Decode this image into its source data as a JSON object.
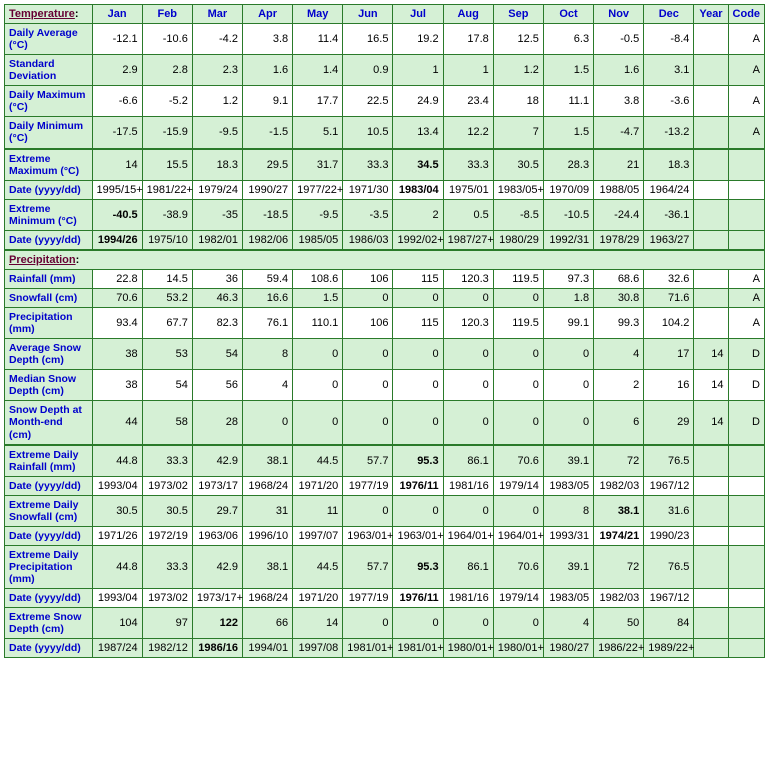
{
  "columns": [
    "Jan",
    "Feb",
    "Mar",
    "Apr",
    "May",
    "Jun",
    "Jul",
    "Aug",
    "Sep",
    "Oct",
    "Nov",
    "Dec",
    "Year",
    "Code"
  ],
  "sections": {
    "temperature": "Temperature",
    "precipitation": "Precipitation"
  },
  "rows": {
    "daily_avg": {
      "label": "Daily Average (°C)",
      "parity": "odd",
      "cells": [
        "-12.1",
        "-10.6",
        "-4.2",
        "3.8",
        "11.4",
        "16.5",
        "19.2",
        "17.8",
        "12.5",
        "6.3",
        "-0.5",
        "-8.4",
        "",
        "A"
      ]
    },
    "std_dev": {
      "label": "Standard Deviation",
      "parity": "even",
      "cells": [
        "2.9",
        "2.8",
        "2.3",
        "1.6",
        "1.4",
        "0.9",
        "1",
        "1",
        "1.2",
        "1.5",
        "1.6",
        "3.1",
        "",
        "A"
      ]
    },
    "daily_max": {
      "label": "Daily Maximum (°C)",
      "parity": "odd",
      "cells": [
        "-6.6",
        "-5.2",
        "1.2",
        "9.1",
        "17.7",
        "22.5",
        "24.9",
        "23.4",
        "18",
        "11.1",
        "3.8",
        "-3.6",
        "",
        "A"
      ]
    },
    "daily_min": {
      "label": "Daily Minimum (°C)",
      "parity": "even",
      "cells": [
        "-17.5",
        "-15.9",
        "-9.5",
        "-1.5",
        "5.1",
        "10.5",
        "13.4",
        "12.2",
        "7",
        "1.5",
        "-4.7",
        "-13.2",
        "",
        "A"
      ]
    },
    "ext_max": {
      "label": "Extreme Maximum (°C)",
      "parity": "even",
      "cells": [
        "14",
        "15.5",
        "18.3",
        "29.5",
        "31.7",
        "33.3",
        "34.5",
        "33.3",
        "30.5",
        "28.3",
        "21",
        "18.3",
        "",
        ""
      ],
      "bold": [
        6
      ]
    },
    "ext_max_date": {
      "label": "Date (yyyy/dd)",
      "parity": "odd",
      "cells": [
        "1995/15+",
        "1981/22+",
        "1979/24",
        "1990/27",
        "1977/22+",
        "1971/30",
        "1983/04",
        "1975/01",
        "1983/05+",
        "1970/09",
        "1988/05",
        "1964/24",
        "",
        ""
      ],
      "bold": [
        6
      ]
    },
    "ext_min": {
      "label": "Extreme Minimum (°C)",
      "parity": "even",
      "cells": [
        "-40.5",
        "-38.9",
        "-35",
        "-18.5",
        "-9.5",
        "-3.5",
        "2",
        "0.5",
        "-8.5",
        "-10.5",
        "-24.4",
        "-36.1",
        "",
        ""
      ],
      "bold": [
        0
      ]
    },
    "ext_min_date": {
      "label": "Date (yyyy/dd)",
      "parity": "even",
      "cells": [
        "1994/26",
        "1975/10",
        "1982/01",
        "1982/06",
        "1985/05",
        "1986/03",
        "1992/02+",
        "1987/27+",
        "1980/29",
        "1992/31",
        "1978/29",
        "1963/27",
        "",
        ""
      ],
      "bold": [
        0
      ]
    },
    "rainfall": {
      "label": "Rainfall (mm)",
      "parity": "odd",
      "cells": [
        "22.8",
        "14.5",
        "36",
        "59.4",
        "108.6",
        "106",
        "115",
        "120.3",
        "119.5",
        "97.3",
        "68.6",
        "32.6",
        "",
        "A"
      ]
    },
    "snowfall": {
      "label": "Snowfall (cm)",
      "parity": "even",
      "cells": [
        "70.6",
        "53.2",
        "46.3",
        "16.6",
        "1.5",
        "0",
        "0",
        "0",
        "0",
        "1.8",
        "30.8",
        "71.6",
        "",
        "A"
      ]
    },
    "precip": {
      "label": "Precipitation (mm)",
      "parity": "odd",
      "cells": [
        "93.4",
        "67.7",
        "82.3",
        "76.1",
        "110.1",
        "106",
        "115",
        "120.3",
        "119.5",
        "99.1",
        "99.3",
        "104.2",
        "",
        "A"
      ]
    },
    "avg_snow_depth": {
      "label": "Average Snow Depth (cm)",
      "parity": "even",
      "cells": [
        "38",
        "53",
        "54",
        "8",
        "0",
        "0",
        "0",
        "0",
        "0",
        "0",
        "4",
        "17",
        "14",
        "D"
      ]
    },
    "med_snow_depth": {
      "label": "Median Snow Depth (cm)",
      "parity": "odd",
      "cells": [
        "38",
        "54",
        "56",
        "4",
        "0",
        "0",
        "0",
        "0",
        "0",
        "0",
        "2",
        "16",
        "14",
        "D"
      ]
    },
    "snow_month_end": {
      "label": "Snow Depth at Month-end (cm)",
      "parity": "even",
      "cells": [
        "44",
        "58",
        "28",
        "0",
        "0",
        "0",
        "0",
        "0",
        "0",
        "0",
        "6",
        "29",
        "14",
        "D"
      ]
    },
    "ext_rain": {
      "label": "Extreme Daily Rainfall (mm)",
      "parity": "even",
      "cells": [
        "44.8",
        "33.3",
        "42.9",
        "38.1",
        "44.5",
        "57.7",
        "95.3",
        "86.1",
        "70.6",
        "39.1",
        "72",
        "76.5",
        "",
        ""
      ],
      "bold": [
        6
      ]
    },
    "ext_rain_date": {
      "label": "Date (yyyy/dd)",
      "parity": "odd",
      "cells": [
        "1993/04",
        "1973/02",
        "1973/17",
        "1968/24",
        "1971/20",
        "1977/19",
        "1976/11",
        "1981/16",
        "1979/14",
        "1983/05",
        "1982/03",
        "1967/12",
        "",
        ""
      ],
      "bold": [
        6
      ]
    },
    "ext_snow": {
      "label": "Extreme Daily Snowfall (cm)",
      "parity": "even",
      "cells": [
        "30.5",
        "30.5",
        "29.7",
        "31",
        "11",
        "0",
        "0",
        "0",
        "0",
        "8",
        "38.1",
        "31.6",
        "",
        ""
      ],
      "bold": [
        10
      ]
    },
    "ext_snow_date": {
      "label": "Date (yyyy/dd)",
      "parity": "odd",
      "cells": [
        "1971/26",
        "1972/19",
        "1963/06",
        "1996/10",
        "1997/07",
        "1963/01+",
        "1963/01+",
        "1964/01+",
        "1964/01+",
        "1993/31",
        "1974/21",
        "1990/23",
        "",
        ""
      ],
      "bold": [
        10
      ]
    },
    "ext_precip": {
      "label": "Extreme Daily Precipitation (mm)",
      "parity": "even",
      "cells": [
        "44.8",
        "33.3",
        "42.9",
        "38.1",
        "44.5",
        "57.7",
        "95.3",
        "86.1",
        "70.6",
        "39.1",
        "72",
        "76.5",
        "",
        ""
      ],
      "bold": [
        6
      ]
    },
    "ext_precip_date": {
      "label": "Date (yyyy/dd)",
      "parity": "odd",
      "cells": [
        "1993/04",
        "1973/02",
        "1973/17+",
        "1968/24",
        "1971/20",
        "1977/19",
        "1976/11",
        "1981/16",
        "1979/14",
        "1983/05",
        "1982/03",
        "1967/12",
        "",
        ""
      ],
      "bold": [
        6
      ]
    },
    "ext_depth": {
      "label": "Extreme Snow Depth (cm)",
      "parity": "even",
      "cells": [
        "104",
        "97",
        "122",
        "66",
        "14",
        "0",
        "0",
        "0",
        "0",
        "4",
        "50",
        "84",
        "",
        ""
      ],
      "bold": [
        2
      ]
    },
    "ext_depth_date": {
      "label": "Date (yyyy/dd)",
      "parity": "even",
      "cells": [
        "1987/24",
        "1982/12",
        "1986/16",
        "1994/01",
        "1997/08",
        "1981/01+",
        "1981/01+",
        "1980/01+",
        "1980/01+",
        "1980/27",
        "1986/22+",
        "1989/22+",
        "",
        ""
      ],
      "bold": [
        2
      ]
    }
  },
  "style": {
    "header_bg": "#d5f0d5",
    "even_bg": "#d5f0d5",
    "odd_bg": "#ffffff",
    "border_color": "#2a7a2a",
    "link_color": "#0000cc",
    "section_color": "#660033"
  }
}
